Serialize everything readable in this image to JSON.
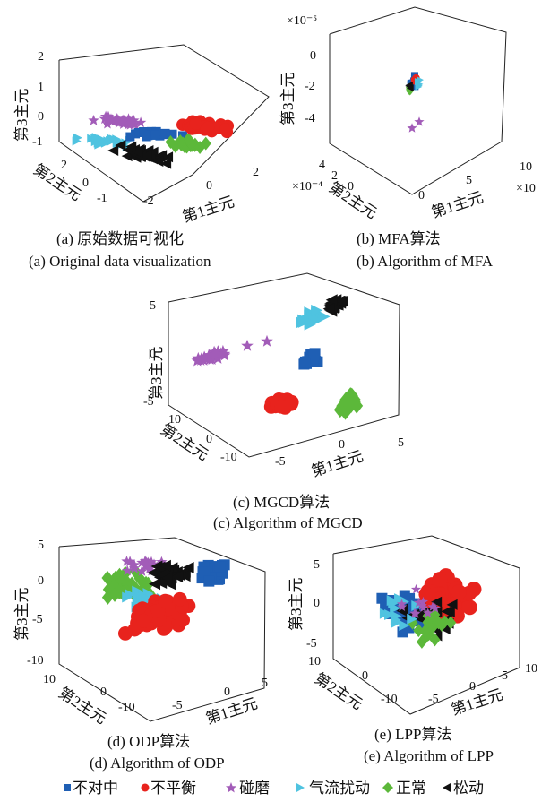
{
  "chart_data": [
    {
      "id": "a",
      "type": "scatter",
      "caption_cn": "(a)  原始数据可视化",
      "caption_en": "(a)  Original data visualization",
      "xlabel": "第1主元",
      "ylabel": "第2主元",
      "zlabel": "第3主元",
      "x_ticks": [
        "-2",
        "0",
        "2"
      ],
      "y_ticks": [
        "2",
        "0",
        "-1"
      ],
      "z_ticks": [
        "2",
        "1",
        "0",
        "-1"
      ],
      "multiplier_z": "",
      "multiplier_y": "",
      "multiplier_x": ""
    },
    {
      "id": "b",
      "type": "scatter",
      "caption_cn": "(b)  MFA算法",
      "caption_en": "(b)  Algorithm of MFA",
      "xlabel": "第1主元",
      "ylabel": "第2主元",
      "zlabel": "第3主元",
      "x_ticks": [
        "0",
        "5",
        "10"
      ],
      "y_ticks": [
        "4",
        "2",
        "0"
      ],
      "z_ticks": [
        "0",
        "-2",
        "-4"
      ],
      "multiplier_z": "×10⁻⁵",
      "multiplier_y": "×10⁻⁴",
      "multiplier_x": "×10"
    },
    {
      "id": "c",
      "type": "scatter",
      "caption_cn": "(c)  MGCD算法",
      "caption_en": "(c)  Algorithm of MGCD",
      "xlabel": "第1主元",
      "ylabel": "第2主元",
      "zlabel": "第3主元",
      "x_ticks": [
        "-5",
        "0",
        "5"
      ],
      "y_ticks": [
        "10",
        "0",
        "-10"
      ],
      "z_ticks": [
        "5",
        "0",
        "-5"
      ],
      "multiplier_z": "",
      "multiplier_y": "",
      "multiplier_x": ""
    },
    {
      "id": "d",
      "type": "scatter",
      "caption_cn": "(d)  ODP算法",
      "caption_en": "(d)  Algorithm of ODP",
      "xlabel": "第1主元",
      "ylabel": "第2主元",
      "zlabel": "第3主元",
      "x_ticks": [
        "-5",
        "0",
        "5"
      ],
      "y_ticks": [
        "10",
        "0",
        "-10"
      ],
      "z_ticks": [
        "5",
        "0",
        "-5",
        "-10"
      ],
      "multiplier_z": "",
      "multiplier_y": "",
      "multiplier_x": ""
    },
    {
      "id": "e",
      "type": "scatter",
      "caption_cn": "(e)  LPP算法",
      "caption_en": "(e)  Algorithm of LPP",
      "xlabel": "第1主元",
      "ylabel": "第2主元",
      "zlabel": "第3主元",
      "x_ticks": [
        "-5",
        "0",
        "5",
        "10"
      ],
      "y_ticks": [
        "10",
        "0",
        "-10"
      ],
      "z_ticks": [
        "5",
        "0",
        "-5"
      ],
      "multiplier_z": "",
      "multiplier_y": "",
      "multiplier_x": ""
    }
  ],
  "legend": [
    {
      "label": "不对中",
      "color": "#1f5fb4",
      "marker": "square"
    },
    {
      "label": "不平衡",
      "color": "#e8231d",
      "marker": "circle"
    },
    {
      "label": "碰磨",
      "color": "#a25cb8",
      "marker": "star"
    },
    {
      "label": "气流扰动",
      "color": "#4fc3e0",
      "marker": "triangle-right"
    },
    {
      "label": "正常",
      "color": "#5cb83a",
      "marker": "diamond"
    },
    {
      "label": "松动",
      "color": "#111111",
      "marker": "triangle-left"
    }
  ]
}
